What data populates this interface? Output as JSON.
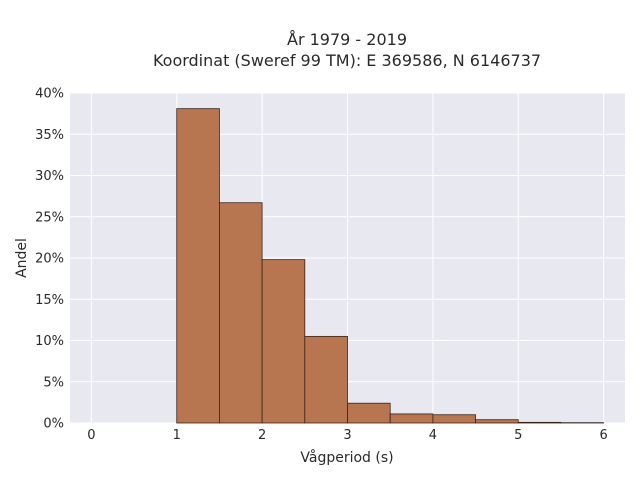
{
  "chart_data": {
    "type": "bar",
    "title_lines": [
      "År 1979 - 2019",
      "Koordinat (Sweref 99 TM): E 369586, N 6146737"
    ],
    "xlabel": "Vågperiod (s)",
    "ylabel": "Andel",
    "xlim": [
      -0.25,
      6.25
    ],
    "ylim": [
      0,
      0.4
    ],
    "x_ticks": [
      0,
      1,
      2,
      3,
      4,
      5,
      6
    ],
    "y_ticks": [
      0,
      0.05,
      0.1,
      0.15,
      0.2,
      0.25,
      0.3,
      0.35,
      0.4
    ],
    "y_tick_labels": [
      "0%",
      "5%",
      "10%",
      "15%",
      "20%",
      "25%",
      "30%",
      "35%",
      "40%"
    ],
    "bins": [
      {
        "x0": 1.0,
        "x1": 1.5,
        "value": 0.381
      },
      {
        "x0": 1.5,
        "x1": 2.0,
        "value": 0.267
      },
      {
        "x0": 2.0,
        "x1": 2.5,
        "value": 0.198
      },
      {
        "x0": 2.5,
        "x1": 3.0,
        "value": 0.105
      },
      {
        "x0": 3.0,
        "x1": 3.5,
        "value": 0.024
      },
      {
        "x0": 3.5,
        "x1": 4.0,
        "value": 0.011
      },
      {
        "x0": 4.0,
        "x1": 4.5,
        "value": 0.01
      },
      {
        "x0": 4.5,
        "x1": 5.0,
        "value": 0.004
      },
      {
        "x0": 5.0,
        "x1": 5.5,
        "value": 0.0008
      },
      {
        "x0": 5.5,
        "x1": 6.0,
        "value": 0.0004
      }
    ],
    "grid": true,
    "colors": {
      "bar_fill": "#b87650",
      "bar_stroke": "#3a2418",
      "plot_background": "#e8e8f1",
      "grid": "#ffffff"
    }
  }
}
